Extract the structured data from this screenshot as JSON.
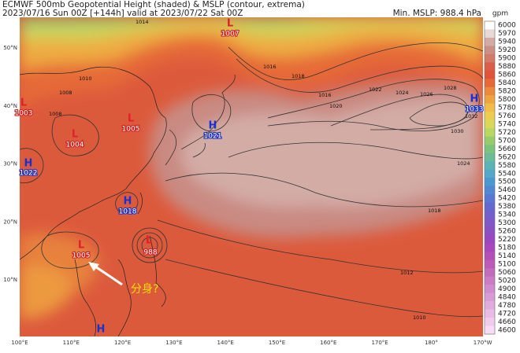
{
  "header": {
    "title": "ECMWF 500mb Geopotential Height (shaded) & MSLP (contour, extrema)",
    "subtitle": "2023/07/16 Sun 00Z [+144h] valid at 2023/07/22 Sat 00Z",
    "min_mslp": "Min. MSLP: 988.4 hPa"
  },
  "colorbar": {
    "unit": "gpm",
    "labels": [
      "6000",
      "5970",
      "5940",
      "5920",
      "5900",
      "5880",
      "5860",
      "5840",
      "5820",
      "5800",
      "5780",
      "5760",
      "5740",
      "5720",
      "5700",
      "5660",
      "5620",
      "5580",
      "5540",
      "5500",
      "5460",
      "5420",
      "5380",
      "5340",
      "5300",
      "5260",
      "5220",
      "5180",
      "5140",
      "5100",
      "5060",
      "5020",
      "4900",
      "4840",
      "4780",
      "4720",
      "4660",
      "4600"
    ],
    "colors": [
      "#ffffff",
      "#e8d8d6",
      "#d4aaa4",
      "#cc8f86",
      "#d47a6a",
      "#da5e48",
      "#e0553a",
      "#e56a38",
      "#ec8a3c",
      "#f0a440",
      "#f2bc48",
      "#eccd52",
      "#d8d85a",
      "#b8d862",
      "#98cc6a",
      "#7cc47c",
      "#6cbc98",
      "#5cb4b4",
      "#54a8c8",
      "#4c98d0",
      "#5088d4",
      "#5878d4",
      "#6468d0",
      "#7460cc",
      "#8058c8",
      "#8c50c4",
      "#9a48c0",
      "#a848bc",
      "#b450b8",
      "#bc5cb8",
      "#c46cbc",
      "#cc7cc4",
      "#d08ccc",
      "#d89cd4",
      "#e0acdc",
      "#e8bce4",
      "#f0ccec",
      "#f8dcf4"
    ]
  },
  "axes": {
    "lat": [
      "50°N",
      "40°N",
      "30°N",
      "20°N",
      "10°N"
    ],
    "lon": [
      "100°E",
      "110°E",
      "120°E",
      "130°E",
      "140°E",
      "150°E",
      "160°E",
      "170°E",
      "180°",
      "170°W"
    ]
  },
  "centers": [
    {
      "type": "L",
      "value": "1007"
    },
    {
      "type": "L",
      "value": "1003"
    },
    {
      "type": "L",
      "value": "1005"
    },
    {
      "type": "L",
      "value": "1004"
    },
    {
      "type": "H",
      "value": "1021"
    },
    {
      "type": "H",
      "value": "1022"
    },
    {
      "type": "H",
      "value": "1018"
    },
    {
      "type": "L",
      "value": "1005"
    },
    {
      "type": "L",
      "value": "988"
    },
    {
      "type": "H",
      "value": "1033"
    },
    {
      "type": "H"
    }
  ],
  "isobar_labels": [
    "1014",
    "1016",
    "1018",
    "1016",
    "1020",
    "1022",
    "1024",
    "1026",
    "1028",
    "1030",
    "1032",
    "1024",
    "1018",
    "1012",
    "1010",
    "1008",
    "1010",
    "1008"
  ],
  "annotation": "分身?"
}
